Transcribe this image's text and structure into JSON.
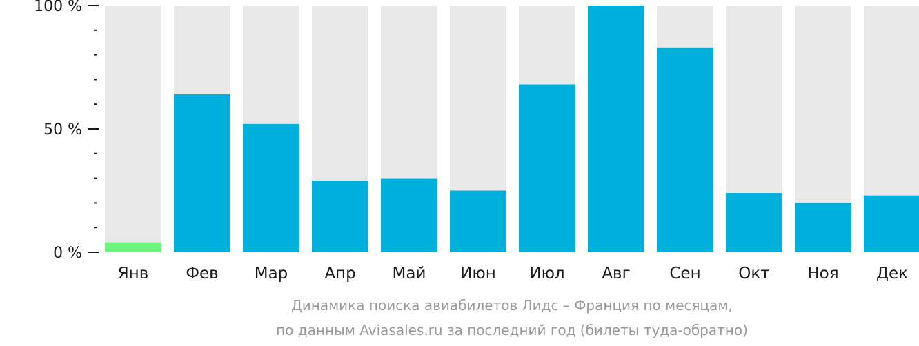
{
  "chart_data": {
    "type": "bar",
    "categories": [
      "Янв",
      "Фев",
      "Мар",
      "Апр",
      "Май",
      "Июн",
      "Июл",
      "Авг",
      "Сен",
      "Окт",
      "Ноя",
      "Дек"
    ],
    "values": [
      4,
      64,
      52,
      29,
      30,
      25,
      68,
      100,
      83,
      24,
      20,
      23
    ],
    "highlight_index": 0,
    "ylim": [
      0,
      100
    ],
    "y_ticks": [
      {
        "value": 0,
        "label": "0 %"
      },
      {
        "value": 50,
        "label": "50 %"
      },
      {
        "value": 100,
        "label": "100 %"
      }
    ],
    "y_minor_step": 10,
    "caption_line1": "Динамика поиска авиабилетов Лидс – Франция по месяцам,",
    "caption_line2": "по данным Aviasales.ru за последний год (билеты туда-обратно)",
    "colors": {
      "bar": "#00b0dc",
      "highlight": "#6ef57f",
      "track": "#e8e8e8",
      "axis": "#1a1a1a",
      "caption": "#9a9a9a"
    }
  }
}
